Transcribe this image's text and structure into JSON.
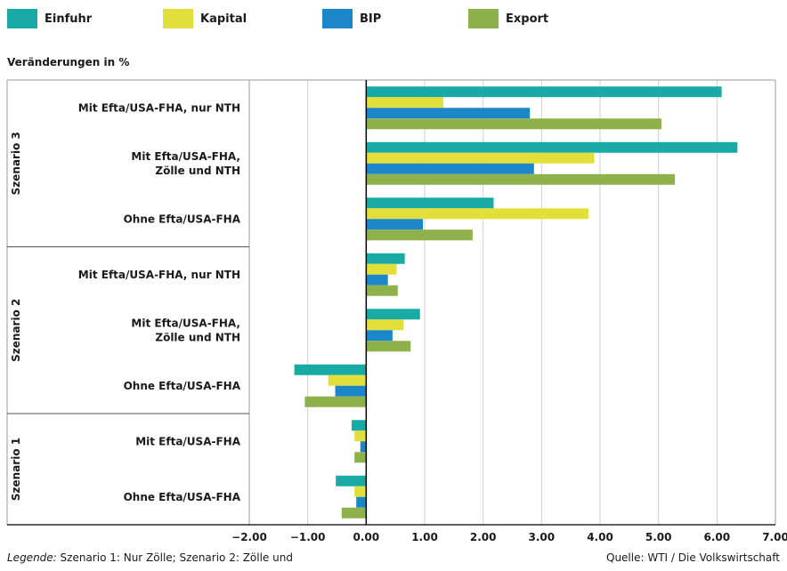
{
  "subtitle": "Veränderungen in %",
  "footer": {
    "legend_prefix": "Legende:",
    "legend_text": "Szenario 1: Nur Zölle; Szenario 2: Zölle und",
    "source": "Quelle: WTI / Die Volkswirtschaft"
  },
  "colors": {
    "Einfuhr": "#1aaaa6",
    "Kapital": "#e2df3b",
    "BIP": "#1b86c8",
    "Export": "#8fb14c"
  },
  "chart_data": {
    "type": "bar",
    "orientation": "horizontal",
    "series_names": [
      "Einfuhr",
      "Kapital",
      "BIP",
      "Export"
    ],
    "groups": [
      {
        "scenario": "Szenario 3",
        "items": [
          {
            "label": [
              "Mit Efta/USA-FHA, nur NTH"
            ],
            "values": [
              6.08,
              1.32,
              2.8,
              5.05
            ]
          },
          {
            "label": [
              "Mit Efta/USA-FHA,",
              "Zölle und NTH"
            ],
            "values": [
              6.35,
              3.9,
              2.87,
              5.28
            ]
          },
          {
            "label": [
              "Ohne Efta/USA-FHA"
            ],
            "values": [
              2.18,
              3.8,
              0.97,
              1.82
            ]
          }
        ]
      },
      {
        "scenario": "Szenario 2",
        "items": [
          {
            "label": [
              "Mit Efta/USA-FHA, nur NTH"
            ],
            "values": [
              0.66,
              0.52,
              0.37,
              0.54
            ]
          },
          {
            "label": [
              "Mit Efta/USA-FHA,",
              "Zölle und NTH"
            ],
            "values": [
              0.92,
              0.64,
              0.45,
              0.76
            ]
          },
          {
            "label": [
              "Ohne Efta/USA-FHA"
            ],
            "values": [
              -1.23,
              -0.65,
              -0.53,
              -1.05
            ]
          }
        ]
      },
      {
        "scenario": "Szenario 1",
        "items": [
          {
            "label": [
              "Mit Efta/USA-FHA"
            ],
            "values": [
              -0.25,
              -0.2,
              -0.1,
              -0.2
            ]
          },
          {
            "label": [
              "Ohne Efta/USA-FHA"
            ],
            "values": [
              -0.52,
              -0.2,
              -0.17,
              -0.42
            ]
          }
        ]
      }
    ],
    "xlim": [
      -2,
      7
    ],
    "xticks": [
      "−2.00",
      "−1.00",
      "0.00",
      "1.00",
      "2.00",
      "3.00",
      "4.00",
      "5.00",
      "6.00",
      "7.00"
    ],
    "grid": true
  }
}
